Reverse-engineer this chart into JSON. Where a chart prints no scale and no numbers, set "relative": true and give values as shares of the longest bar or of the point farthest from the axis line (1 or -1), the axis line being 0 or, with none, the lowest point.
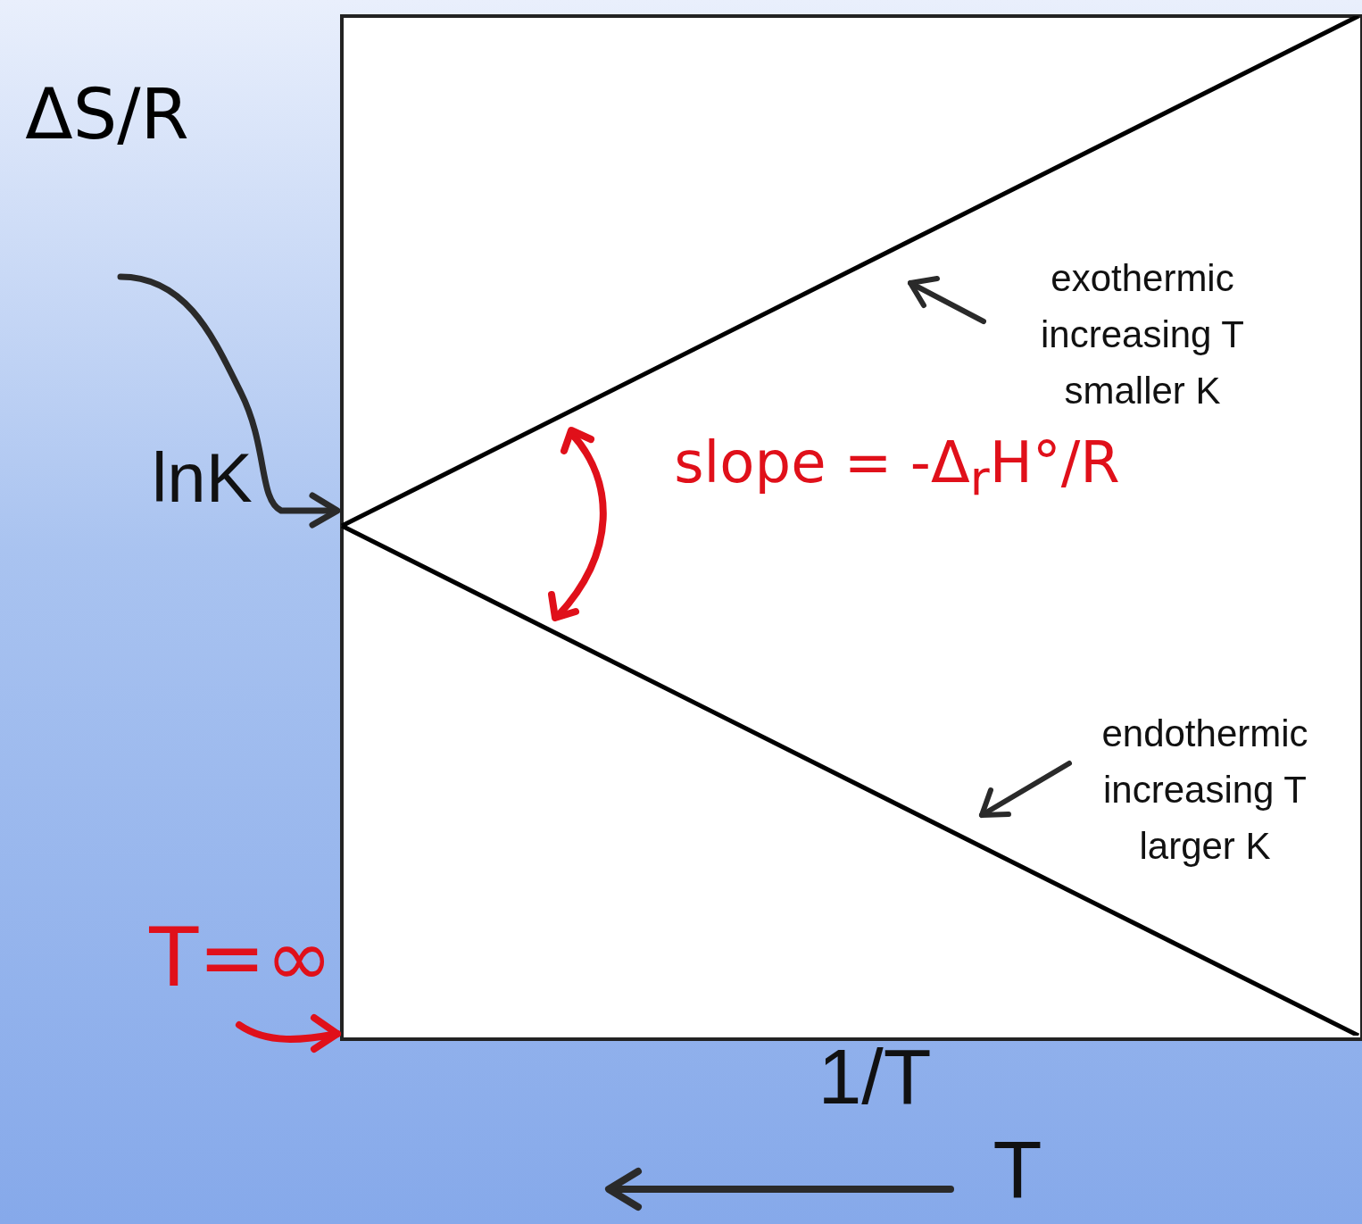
{
  "chart_data": {
    "type": "line",
    "relative": true,
    "marker": "none",
    "legend": false,
    "xlabel": "1/T",
    "ylabel": "lnK",
    "categories": [
      null,
      null
    ],
    "series": [
      {
        "color": "#000000",
        "values": [
          0.5,
          1.0
        ]
      },
      {
        "color": "#000000",
        "values": [
          0.5,
          0.0
        ]
      }
    ],
    "annotations": [
      "ΔS/R",
      "T=∞",
      "slope = -Δ$_{r}$H°/R",
      "exothermic\nincreasing T\nsmaller K",
      "endothermic\nincreasing T\nlarger K",
      "T"
    ]
  }
}
